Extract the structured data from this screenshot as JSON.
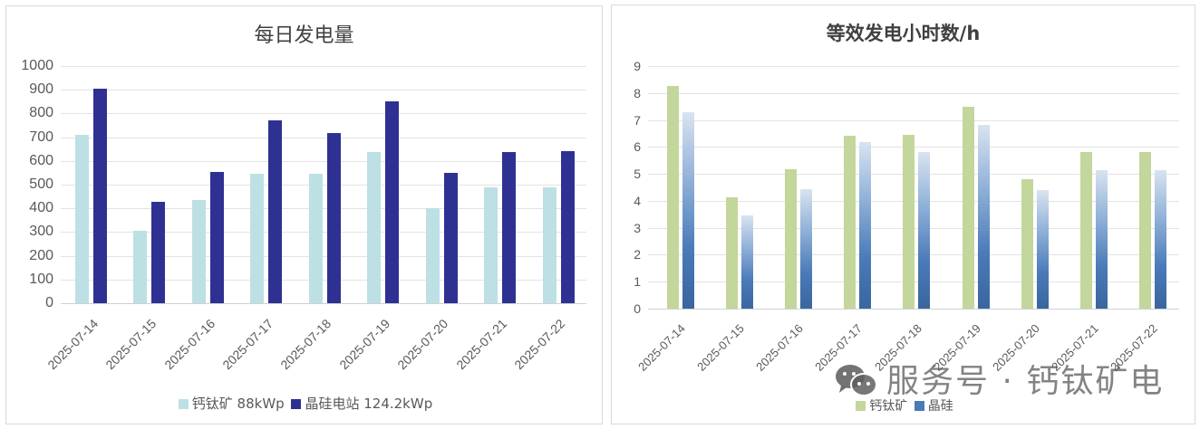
{
  "chart_data": [
    {
      "type": "bar",
      "title": "每日发电量",
      "xlabel": "",
      "ylabel": "",
      "ylim": [
        0,
        1000
      ],
      "yticks": [
        0,
        100,
        200,
        300,
        400,
        500,
        600,
        700,
        800,
        900,
        1000
      ],
      "grid": true,
      "legend_position": "bottom",
      "categories": [
        "2025-07-14",
        "2025-07-15",
        "2025-07-16",
        "2025-07-17",
        "2025-07-18",
        "2025-07-19",
        "2025-07-20",
        "2025-07-21",
        "2025-07-22"
      ],
      "series": [
        {
          "name": "钙钛矿 88kWp",
          "color": "#bde0e4",
          "values": [
            711,
            304,
            437,
            547,
            547,
            637,
            401,
            490,
            490
          ]
        },
        {
          "name": "晶硅电站 124.2kWp",
          "color": "#2e3192",
          "values": [
            905,
            428,
            555,
            772,
            718,
            852,
            549,
            638,
            642
          ]
        }
      ]
    },
    {
      "type": "bar",
      "title": "等效发电小时数/h",
      "xlabel": "",
      "ylabel": "",
      "ylim": [
        0,
        9
      ],
      "yticks": [
        0,
        1,
        2,
        3,
        4,
        5,
        6,
        7,
        8,
        9
      ],
      "grid": true,
      "legend_position": "bottom",
      "categories": [
        "2025-07-14",
        "2025-07-15",
        "2025-07-16",
        "2025-07-17",
        "2025-07-18",
        "2025-07-19",
        "2025-07-20",
        "2025-07-21",
        "2025-07-22"
      ],
      "series": [
        {
          "name": "钙钛矿",
          "color": "#c3d69b",
          "values": [
            8.26,
            4.14,
            5.18,
            6.41,
            6.45,
            7.5,
            4.79,
            5.8,
            5.8
          ]
        },
        {
          "name": "晶硅",
          "color": "#4a7ab8",
          "values": [
            7.28,
            3.46,
            4.44,
            6.19,
            5.8,
            6.83,
            4.41,
            5.13,
            5.13
          ]
        }
      ]
    }
  ],
  "watermark": {
    "text": "服务号 · 钙钛矿电",
    "icon": "wechat-icon"
  }
}
